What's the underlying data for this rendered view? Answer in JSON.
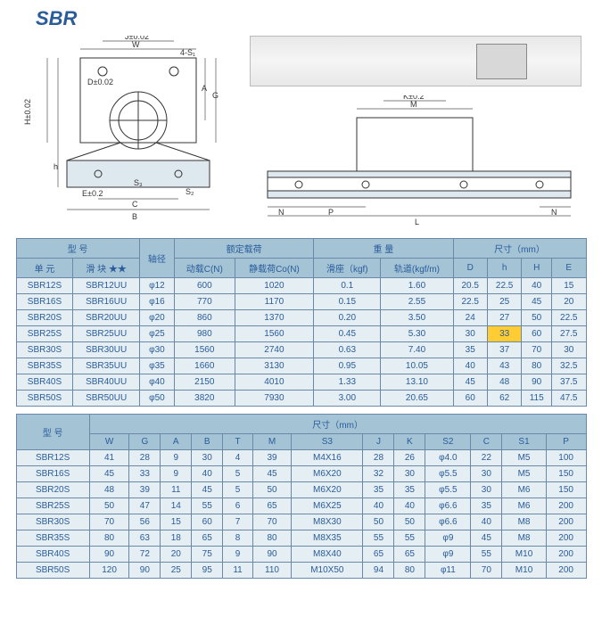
{
  "title": "SBR",
  "colors": {
    "header_bg": "#a4c4d6",
    "cell_bg": "#e4eef3",
    "border": "#6a89a8",
    "text": "#2a5c9a",
    "highlight": "#ffcc33",
    "line": "#333333"
  },
  "drawing_labels": {
    "front": [
      "W",
      "J±0.02",
      "4-S1",
      "D±0.02",
      "H±0.02",
      "h",
      "G",
      "A",
      "E±0.2",
      "S3",
      "C",
      "B",
      "S2"
    ],
    "side": [
      "M",
      "K±0.2",
      "N",
      "P",
      "L",
      "N"
    ]
  },
  "table1": {
    "headers": {
      "model": "型 号",
      "shaft": "轴径",
      "load": "额定载荷",
      "weight": "重 量",
      "dims": "尺寸（mm）",
      "unit": "单 元",
      "block": "滑 块 ★★",
      "dyn": "动载C(N)",
      "stat": "静载荷Co(N)",
      "seat": "滑座（kgf)",
      "rail": "轨道(kgf/m)",
      "D": "D",
      "h": "h",
      "H": "H",
      "E": "E"
    },
    "rows": [
      [
        "SBR12S",
        "SBR12UU",
        "φ12",
        "600",
        "1020",
        "0.1",
        "1.60",
        "20.5",
        "22.5",
        "40",
        "15"
      ],
      [
        "SBR16S",
        "SBR16UU",
        "φ16",
        "770",
        "1170",
        "0.15",
        "2.55",
        "22.5",
        "25",
        "45",
        "20"
      ],
      [
        "SBR20S",
        "SBR20UU",
        "φ20",
        "860",
        "1370",
        "0.20",
        "3.50",
        "24",
        "27",
        "50",
        "22.5"
      ],
      [
        "SBR25S",
        "SBR25UU",
        "φ25",
        "980",
        "1560",
        "0.45",
        "5.30",
        "30",
        "33",
        "60",
        "27.5"
      ],
      [
        "SBR30S",
        "SBR30UU",
        "φ30",
        "1560",
        "2740",
        "0.63",
        "7.40",
        "35",
        "37",
        "70",
        "30"
      ],
      [
        "SBR35S",
        "SBR35UU",
        "φ35",
        "1660",
        "3130",
        "0.95",
        "10.05",
        "40",
        "43",
        "80",
        "32.5"
      ],
      [
        "SBR40S",
        "SBR40UU",
        "φ40",
        "2150",
        "4010",
        "1.33",
        "13.10",
        "45",
        "48",
        "90",
        "37.5"
      ],
      [
        "SBR50S",
        "SBR50UU",
        "φ50",
        "3820",
        "7930",
        "3.00",
        "20.65",
        "60",
        "62",
        "115",
        "47.5"
      ]
    ],
    "highlight": {
      "row": 3,
      "col": 8
    }
  },
  "table2": {
    "headers": {
      "model": "型 号",
      "dims": "尺寸（mm）",
      "cols": [
        "W",
        "G",
        "A",
        "B",
        "T",
        "M",
        "S3",
        "J",
        "K",
        "S2",
        "C",
        "S1",
        "P"
      ]
    },
    "rows": [
      [
        "SBR12S",
        "41",
        "28",
        "9",
        "30",
        "4",
        "39",
        "M4X16",
        "28",
        "26",
        "φ4.0",
        "22",
        "M5",
        "100"
      ],
      [
        "SBR16S",
        "45",
        "33",
        "9",
        "40",
        "5",
        "45",
        "M6X20",
        "32",
        "30",
        "φ5.5",
        "30",
        "M5",
        "150"
      ],
      [
        "SBR20S",
        "48",
        "39",
        "11",
        "45",
        "5",
        "50",
        "M6X20",
        "35",
        "35",
        "φ5.5",
        "30",
        "M6",
        "150"
      ],
      [
        "SBR25S",
        "50",
        "47",
        "14",
        "55",
        "6",
        "65",
        "M6X25",
        "40",
        "40",
        "φ6.6",
        "35",
        "M6",
        "200"
      ],
      [
        "SBR30S",
        "70",
        "56",
        "15",
        "60",
        "7",
        "70",
        "M8X30",
        "50",
        "50",
        "φ6.6",
        "40",
        "M8",
        "200"
      ],
      [
        "SBR35S",
        "80",
        "63",
        "18",
        "65",
        "8",
        "80",
        "M8X35",
        "55",
        "55",
        "φ9",
        "45",
        "M8",
        "200"
      ],
      [
        "SBR40S",
        "90",
        "72",
        "20",
        "75",
        "9",
        "90",
        "M8X40",
        "65",
        "65",
        "φ9",
        "55",
        "M10",
        "200"
      ],
      [
        "SBR50S",
        "120",
        "90",
        "25",
        "95",
        "11",
        "110",
        "M10X50",
        "94",
        "80",
        "φ11",
        "70",
        "M10",
        "200"
      ]
    ]
  }
}
